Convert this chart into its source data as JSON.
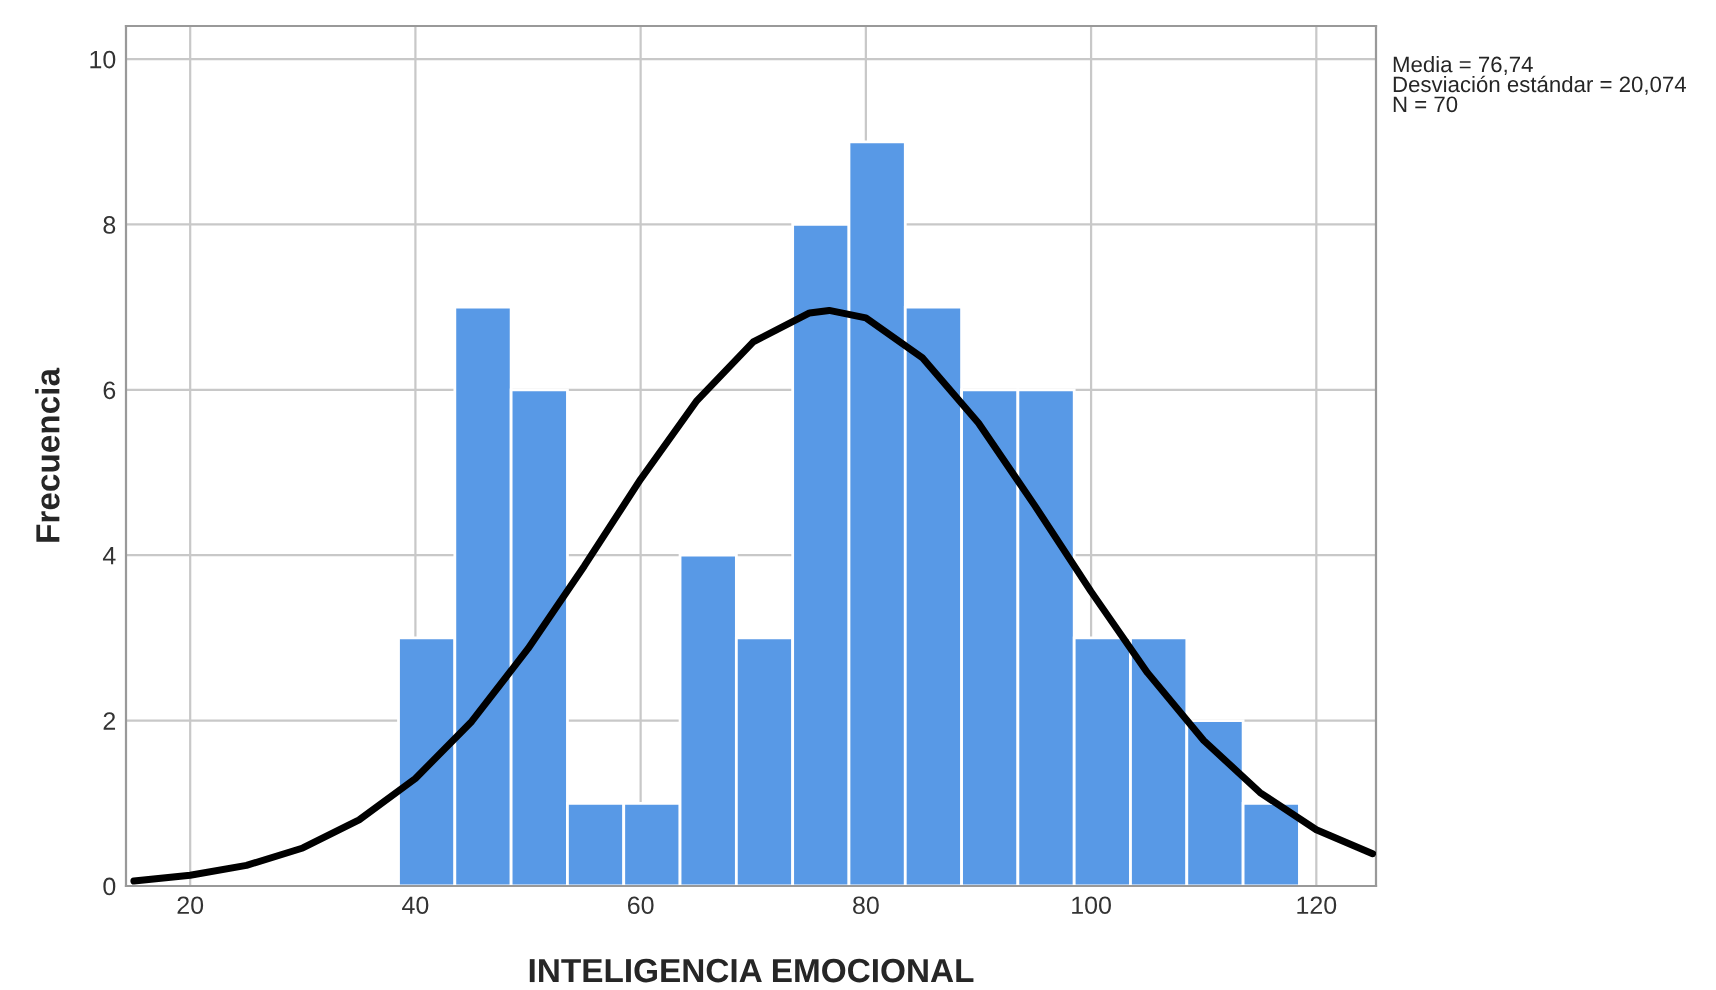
{
  "chart_data": {
    "type": "histogram",
    "xlabel": "INTELIGENCIA EMOCIONAL",
    "ylabel": "Frecuencia",
    "bins": [
      38.5,
      43.5,
      48.5,
      53.5,
      58.5,
      63.5,
      68.5,
      73.5,
      78.5,
      83.5,
      88.5,
      93.5,
      98.5,
      103.5,
      108.5,
      113.5,
      118.5
    ],
    "values": [
      3,
      7,
      6,
      1,
      1,
      4,
      3,
      8,
      9,
      7,
      6,
      6,
      3,
      3,
      2,
      1
    ],
    "color": "#5899e6",
    "series": [
      {
        "type": "line",
        "color": "#000000",
        "x": [
          15,
          20,
          25,
          30,
          35,
          40,
          45,
          50,
          55,
          60,
          65,
          70,
          75,
          76.74,
          80,
          85,
          90,
          95,
          100,
          105,
          110,
          115,
          120,
          125
        ],
        "values": [
          0.06,
          0.13,
          0.25,
          0.46,
          0.8,
          1.3,
          1.99,
          2.87,
          3.87,
          4.92,
          5.87,
          6.58,
          6.93,
          6.96,
          6.87,
          6.39,
          5.6,
          4.6,
          3.56,
          2.58,
          1.76,
          1.13,
          0.68,
          0.39
        ]
      }
    ],
    "xlim": [
      14.3,
      125.3
    ],
    "ylim": [
      0,
      10.4
    ],
    "xticks": [
      20,
      40,
      60,
      80,
      100,
      120
    ],
    "yticks": [
      0,
      2,
      4,
      6,
      8,
      10
    ],
    "grid": true,
    "annotations": [
      "Media = 76,74\nDesviación estándar = 20,074\nN = 70"
    ]
  }
}
